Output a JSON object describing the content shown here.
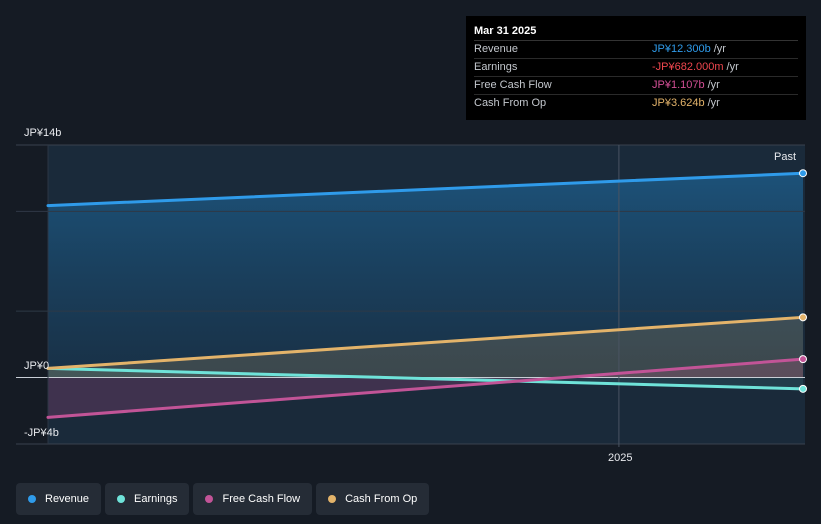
{
  "tooltip": {
    "date": "Mar 31 2025",
    "rows": [
      {
        "label": "Revenue",
        "value": "JP¥12.300b",
        "unit": "/yr",
        "color": "#2f9bea"
      },
      {
        "label": "Earnings",
        "value": "-JP¥682.000m",
        "unit": "/yr",
        "color": "#f0474f"
      },
      {
        "label": "Free Cash Flow",
        "value": "JP¥1.107b",
        "unit": "/yr",
        "color": "#d44f96"
      },
      {
        "label": "Cash From Op",
        "value": "JP¥3.624b",
        "unit": "/yr",
        "color": "#e3b36a"
      }
    ]
  },
  "legend": [
    {
      "label": "Revenue",
      "color": "#2f9bea"
    },
    {
      "label": "Earnings",
      "color": "#6fe3d9"
    },
    {
      "label": "Free Cash Flow",
      "color": "#c25497"
    },
    {
      "label": "Cash From Op",
      "color": "#e3b36a"
    }
  ],
  "chart_data": {
    "type": "line",
    "x_dates": [
      "2024-03-31",
      "2025-03-31"
    ],
    "x_tick_labels": [
      {
        "label": "2025",
        "date": "2025-01-01"
      }
    ],
    "y_tick_labels": [
      {
        "label": "JP¥14b",
        "value": 14
      },
      {
        "label": "JP¥0",
        "value": 0
      },
      {
        "label": "-JP¥4b",
        "value": -4
      }
    ],
    "ylim": [
      -4,
      14
    ],
    "past_label": "Past",
    "series": [
      {
        "name": "Revenue",
        "color": "#2f9bea",
        "values": [
          10.35,
          12.3
        ]
      },
      {
        "name": "Earnings",
        "color": "#6fe3d9",
        "values": [
          0.55,
          -0.682
        ]
      },
      {
        "name": "Free Cash Flow",
        "color": "#c25497",
        "values": [
          -2.4,
          1.107
        ]
      },
      {
        "name": "Cash From Op",
        "color": "#e3b36a",
        "values": [
          0.55,
          3.624
        ]
      }
    ]
  }
}
